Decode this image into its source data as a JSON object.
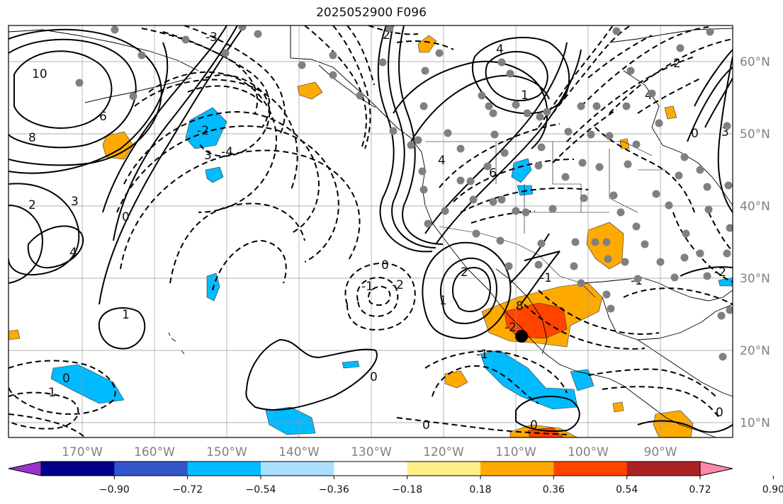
{
  "title": "2025052900 F096",
  "latitude_labels": [
    "60°N",
    "50°N",
    "40°N",
    "30°N",
    "20°N",
    "10°N"
  ],
  "longitude_labels": [
    "170°W",
    "160°W",
    "150°W",
    "140°W",
    "130°W",
    "120°W",
    "110°W",
    "100°W",
    "90°W"
  ],
  "colorbar": {
    "colors": [
      "#9933cc",
      "#000088",
      "#3355cc",
      "#00bbff",
      "#aadfff",
      "#ffffff",
      "#ffee88",
      "#ffaa00",
      "#ff4400",
      "#aa2222",
      "#ff88aa"
    ],
    "ticks": [
      "−0.90",
      "−0.72",
      "−0.54",
      "−0.36",
      "−0.18",
      "0.18",
      "0.36",
      "0.54",
      "0.72",
      "0.90"
    ]
  },
  "contour_labels": [
    "10",
    "8",
    "6",
    "3",
    "2",
    "4",
    "1",
    "0",
    "-1",
    "-2",
    "-3",
    "-4",
    "0",
    "2",
    "3",
    "4",
    "1",
    "0",
    "-1",
    "-2",
    "2",
    "1",
    "0",
    "8",
    "-1",
    "-2",
    "0",
    "-1",
    "0",
    "4",
    "6",
    "0",
    "3",
    "2",
    "4",
    "-2",
    "-1",
    "0"
  ],
  "marker": {
    "label": "point",
    "color": "#000000"
  }
}
